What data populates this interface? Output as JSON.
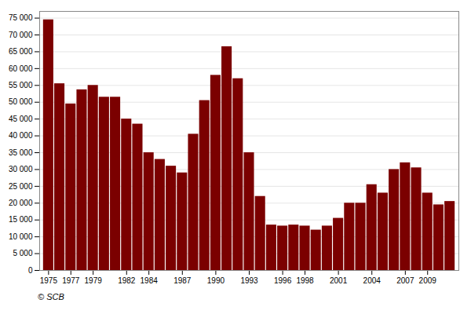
{
  "chart_data": {
    "type": "bar",
    "x": [
      1975,
      1976,
      1977,
      1978,
      1979,
      1980,
      1981,
      1982,
      1983,
      1984,
      1985,
      1986,
      1987,
      1988,
      1989,
      1990,
      1991,
      1992,
      1993,
      1994,
      1995,
      1996,
      1997,
      1998,
      1999,
      2000,
      2001,
      2002,
      2003,
      2004,
      2005,
      2006,
      2007,
      2008,
      2009,
      2010,
      2011
    ],
    "values": [
      74500,
      55500,
      49500,
      53700,
      55000,
      51500,
      51500,
      45000,
      43500,
      35000,
      33000,
      31000,
      29000,
      40500,
      50500,
      58000,
      66500,
      57000,
      35000,
      22000,
      13500,
      13200,
      13500,
      13200,
      12000,
      13200,
      15500,
      20000,
      20000,
      25500,
      23000,
      30000,
      32000,
      30500,
      23000,
      19500,
      20500
    ],
    "color": "#7B0000",
    "xlim": [
      1974.2,
      2011.8
    ],
    "xticks": [
      1975,
      1977,
      1979,
      1982,
      1984,
      1987,
      1990,
      1993,
      1996,
      1998,
      2001,
      2004,
      2007,
      2009
    ],
    "ylim": [
      0,
      77000
    ],
    "yticks": [
      0,
      {
        "value": 5000,
        "label": "5 000"
      },
      {
        "value": 10000,
        "label": "10 000"
      },
      {
        "value": 15000,
        "label": "15 000"
      },
      {
        "value": 20000,
        "label": "20 000"
      },
      {
        "value": 25000,
        "label": "25 000"
      },
      {
        "value": 30000,
        "label": "30 000"
      },
      {
        "value": 35000,
        "label": "35 000"
      },
      {
        "value": 40000,
        "label": "40 000"
      },
      {
        "value": 45000,
        "label": "45 000"
      },
      {
        "value": 50000,
        "label": "50 000"
      },
      {
        "value": 55000,
        "label": "55 000"
      },
      {
        "value": 60000,
        "label": "60 000"
      },
      {
        "value": 65000,
        "label": "65 000"
      },
      {
        "value": 70000,
        "label": "70 000"
      },
      {
        "value": 75000,
        "label": "75 000"
      }
    ],
    "grid": true,
    "caption": "© SCB"
  }
}
